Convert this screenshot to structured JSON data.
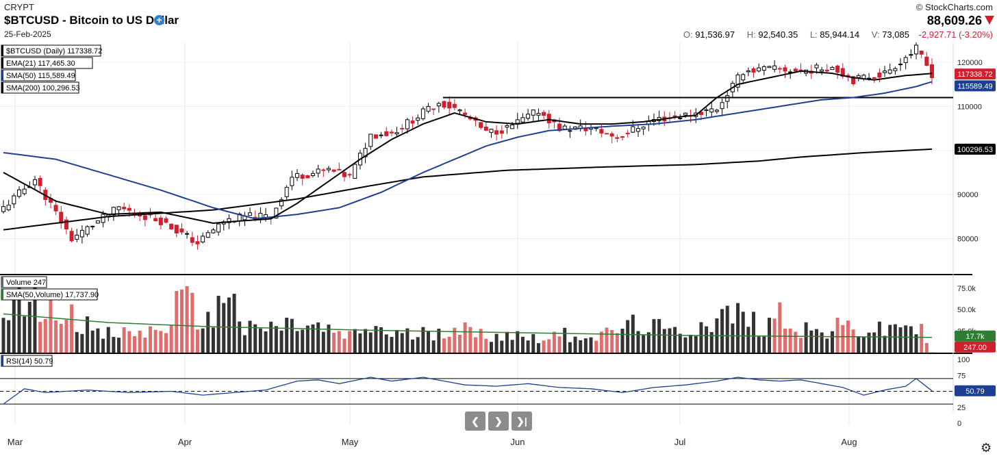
{
  "header": {
    "exchange": "CRYPT",
    "title": "$BTCUSD - Bitcoin to US Dollar",
    "date": "25-Feb-2025",
    "brand": "© StockCharts.com",
    "last_price": "88,609.26",
    "ohlc": {
      "o_label": "O:",
      "o": "91,536.97",
      "h_label": "H:",
      "h": "92,540.35",
      "l_label": "L:",
      "l": "85,944.14",
      "v_label": "V:",
      "v": "73,085",
      "change": "-2,927.71 (-3.20%)"
    }
  },
  "legend": {
    "price": "$BTCUSD (Daily) 117338.72",
    "ema21": "EMA(21) 117,465.30",
    "sma50": "SMA(50) 115,589.49",
    "sma200": "SMA(200) 100,296.53",
    "volume": "Volume 247",
    "vol_sma": "SMA(50,Volume) 17,737.90",
    "rsi": "RSI(14) 50.79"
  },
  "badges": {
    "price": "117338.72",
    "sma50": "115589.49",
    "sma200": "100296.53",
    "vol_sma": "17.7k",
    "volume": "247.00",
    "rsi": "50.79"
  },
  "colors": {
    "up": "#000000",
    "down": "#d01f2d",
    "sma50": "#1c3f94",
    "ema21": "#000000",
    "sma200": "#000000",
    "vol_sma": "#2e7d32"
  },
  "nav": {
    "prev_icon": "chevron-left-icon",
    "next_icon": "chevron-right-icon",
    "end_icon": "skip-to-end-icon"
  },
  "chart_data": {
    "type": "candlestick",
    "x_tick_labels": [
      "Mar",
      "Apr",
      "May",
      "Jun",
      "Jul",
      "Aug"
    ],
    "price_axis": {
      "ticks": [
        "120000",
        "110000",
        "100000",
        "90000",
        "80000"
      ],
      "ylim": [
        72000,
        124500
      ]
    },
    "resistance_level": 112000,
    "anchors": {
      "close": [
        [
          0,
          87000
        ],
        [
          6,
          93500
        ],
        [
          13,
          80000
        ],
        [
          22,
          87000
        ],
        [
          30,
          84000
        ],
        [
          37,
          79000
        ],
        [
          42,
          84000
        ],
        [
          46,
          85000
        ],
        [
          51,
          85000
        ],
        [
          55,
          94000
        ],
        [
          62,
          95500
        ],
        [
          66,
          94000
        ],
        [
          70,
          103500
        ],
        [
          74,
          104000
        ],
        [
          78,
          107000
        ],
        [
          83,
          111000
        ],
        [
          87,
          109000
        ],
        [
          92,
          104000
        ],
        [
          96,
          105000
        ],
        [
          102,
          109000
        ],
        [
          106,
          105000
        ],
        [
          112,
          105000
        ],
        [
          117,
          103000
        ],
        [
          124,
          107000
        ],
        [
          130,
          108000
        ],
        [
          136,
          109500
        ],
        [
          141,
          118000
        ],
        [
          146,
          118500
        ],
        [
          152,
          118000
        ],
        [
          158,
          119000
        ],
        [
          162,
          116000
        ],
        [
          168,
          117500
        ],
        [
          174,
          123000
        ],
        [
          177,
          117338.72
        ]
      ],
      "ema21": [
        [
          0,
          95000
        ],
        [
          10,
          88500
        ],
        [
          20,
          85500
        ],
        [
          30,
          86000
        ],
        [
          40,
          83500
        ],
        [
          45,
          84000
        ],
        [
          51,
          84500
        ],
        [
          56,
          88000
        ],
        [
          62,
          93000
        ],
        [
          68,
          98000
        ],
        [
          74,
          102500
        ],
        [
          80,
          106000
        ],
        [
          86,
          108500
        ],
        [
          92,
          106500
        ],
        [
          98,
          106000
        ],
        [
          104,
          107000
        ],
        [
          110,
          106000
        ],
        [
          116,
          106000
        ],
        [
          122,
          106500
        ],
        [
          128,
          107500
        ],
        [
          132,
          108000
        ],
        [
          136,
          112000
        ],
        [
          140,
          115000
        ],
        [
          146,
          116500
        ],
        [
          152,
          118000
        ],
        [
          158,
          117500
        ],
        [
          162,
          116500
        ],
        [
          166,
          116000
        ],
        [
          172,
          117000
        ],
        [
          177,
          117465.3
        ]
      ],
      "sma50": [
        [
          0,
          99500
        ],
        [
          10,
          98000
        ],
        [
          20,
          94500
        ],
        [
          30,
          91000
        ],
        [
          40,
          87000
        ],
        [
          48,
          84500
        ],
        [
          56,
          85500
        ],
        [
          64,
          87000
        ],
        [
          72,
          90500
        ],
        [
          80,
          95000
        ],
        [
          86,
          98000
        ],
        [
          92,
          101000
        ],
        [
          98,
          103000
        ],
        [
          104,
          104500
        ],
        [
          110,
          105000
        ],
        [
          116,
          105500
        ],
        [
          124,
          106000
        ],
        [
          132,
          107000
        ],
        [
          140,
          108500
        ],
        [
          148,
          110000
        ],
        [
          156,
          111500
        ],
        [
          162,
          112000
        ],
        [
          168,
          113000
        ],
        [
          174,
          114500
        ],
        [
          177,
          115589.49
        ]
      ],
      "sma200": [
        [
          0,
          82000
        ],
        [
          20,
          85000
        ],
        [
          40,
          86500
        ],
        [
          56,
          89000
        ],
        [
          70,
          92000
        ],
        [
          80,
          94000
        ],
        [
          96,
          95500
        ],
        [
          116,
          96300
        ],
        [
          132,
          96800
        ],
        [
          144,
          97600
        ],
        [
          152,
          98500
        ],
        [
          164,
          99500
        ],
        [
          177,
          100296.53
        ]
      ],
      "volume": [
        [
          0,
          30
        ],
        [
          4,
          75
        ],
        [
          8,
          45
        ],
        [
          12,
          55
        ],
        [
          18,
          20
        ],
        [
          30,
          25
        ],
        [
          34,
          60
        ],
        [
          40,
          30
        ],
        [
          41,
          80
        ],
        [
          43,
          70
        ],
        [
          46,
          25
        ],
        [
          55,
          32
        ],
        [
          60,
          28
        ],
        [
          66,
          18
        ],
        [
          70,
          30
        ],
        [
          74,
          22
        ],
        [
          78,
          20
        ],
        [
          82,
          25
        ],
        [
          86,
          32
        ],
        [
          90,
          20
        ],
        [
          96,
          22
        ],
        [
          100,
          18
        ],
        [
          106,
          20
        ],
        [
          110,
          22
        ],
        [
          114,
          18
        ],
        [
          118,
          30
        ],
        [
          122,
          32
        ],
        [
          128,
          22
        ],
        [
          132,
          30
        ],
        [
          136,
          40
        ],
        [
          140,
          45
        ],
        [
          144,
          30
        ],
        [
          148,
          45
        ],
        [
          152,
          30
        ],
        [
          156,
          22
        ],
        [
          160,
          30
        ],
        [
          164,
          25
        ],
        [
          168,
          25
        ],
        [
          172,
          35
        ],
        [
          176,
          20
        ],
        [
          177,
          0.247
        ]
      ],
      "vol_sma": [
        [
          0,
          45
        ],
        [
          20,
          35
        ],
        [
          40,
          30
        ],
        [
          56,
          28
        ],
        [
          70,
          26
        ],
        [
          90,
          24
        ],
        [
          110,
          22
        ],
        [
          130,
          20
        ],
        [
          150,
          19
        ],
        [
          177,
          17.7379
        ]
      ],
      "rsi": [
        [
          0,
          30
        ],
        [
          4,
          54
        ],
        [
          8,
          48
        ],
        [
          16,
          52
        ],
        [
          24,
          48
        ],
        [
          32,
          50
        ],
        [
          38,
          44
        ],
        [
          44,
          48
        ],
        [
          50,
          52
        ],
        [
          56,
          66
        ],
        [
          60,
          68
        ],
        [
          64,
          62
        ],
        [
          70,
          72
        ],
        [
          74,
          66
        ],
        [
          80,
          72
        ],
        [
          84,
          66
        ],
        [
          88,
          60
        ],
        [
          94,
          58
        ],
        [
          100,
          62
        ],
        [
          106,
          56
        ],
        [
          112,
          54
        ],
        [
          118,
          48
        ],
        [
          124,
          56
        ],
        [
          130,
          60
        ],
        [
          136,
          66
        ],
        [
          140,
          72
        ],
        [
          144,
          68
        ],
        [
          148,
          66
        ],
        [
          152,
          68
        ],
        [
          156,
          62
        ],
        [
          160,
          56
        ],
        [
          164,
          44
        ],
        [
          168,
          52
        ],
        [
          172,
          58
        ],
        [
          174,
          70
        ],
        [
          177,
          50.79
        ]
      ]
    },
    "volume_axis": {
      "ticks": [
        "75.0k",
        "50.0k",
        "25.0k"
      ],
      "ylim": [
        0,
        90
      ]
    },
    "rsi_axis": {
      "ticks": [
        "100",
        "75",
        "50",
        "25",
        "0"
      ],
      "ylim": [
        0,
        100
      ],
      "overbought": 70,
      "oversold": 30
    }
  }
}
